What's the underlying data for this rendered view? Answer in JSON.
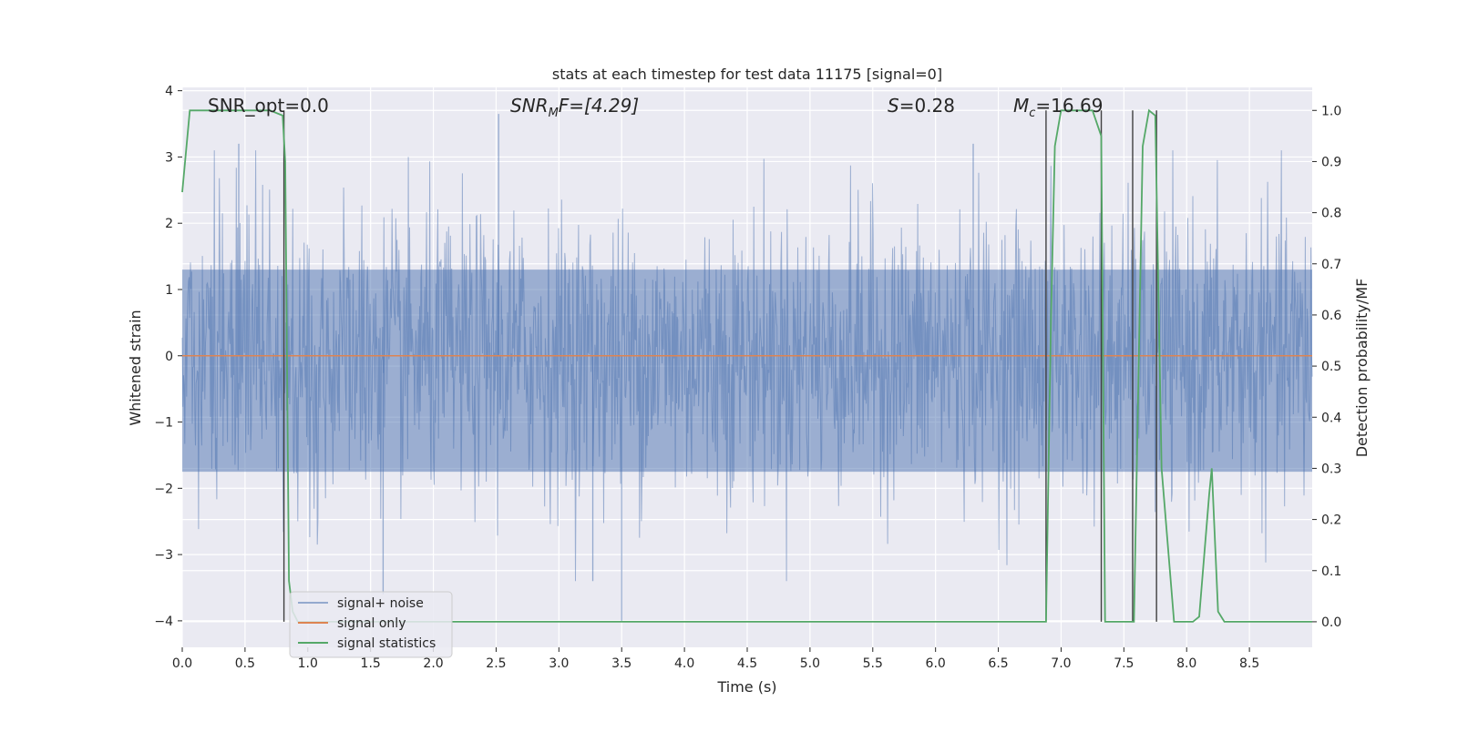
{
  "chart_data": {
    "type": "line",
    "title": "stats at each timestep for test data 11175 [signal=0]",
    "xlabel": "Time (s)",
    "ylabel_left": "Whitened strain",
    "ylabel_right": "Detection probability/MF",
    "xlim": [
      0.0,
      9.0
    ],
    "ylim_left": [
      -4.4,
      4.05
    ],
    "ylim_right": [
      -0.05,
      1.045
    ],
    "x_ticks": [
      "0.0",
      "0.5",
      "1.0",
      "1.5",
      "2.0",
      "2.5",
      "3.0",
      "3.5",
      "4.0",
      "4.5",
      "5.0",
      "5.5",
      "6.0",
      "6.5",
      "7.0",
      "7.5",
      "8.0",
      "8.5"
    ],
    "x_tick_values": [
      0.0,
      0.5,
      1.0,
      1.5,
      2.0,
      2.5,
      3.0,
      3.5,
      4.0,
      4.5,
      5.0,
      5.5,
      6.0,
      6.5,
      7.0,
      7.5,
      8.0,
      8.5
    ],
    "y_left_ticks": [
      "−4",
      "−3",
      "−2",
      "−1",
      "0",
      "1",
      "2",
      "3",
      "4"
    ],
    "y_left_tick_values": [
      -4,
      -3,
      -2,
      -1,
      0,
      1,
      2,
      3,
      4
    ],
    "y_right_ticks": [
      "0.0",
      "0.1",
      "0.2",
      "0.3",
      "0.4",
      "0.5",
      "0.6",
      "0.7",
      "0.8",
      "0.9",
      "1.0"
    ],
    "y_right_tick_values": [
      0.0,
      0.1,
      0.2,
      0.3,
      0.4,
      0.5,
      0.6,
      0.7,
      0.8,
      0.9,
      1.0
    ],
    "grid": true,
    "legend_placement": "lower-left",
    "annotations": {
      "snr_opt": "SNR_opt=0.0",
      "snr_mf_main": "SNR",
      "snr_mf_sub": "M",
      "snr_mf_rest": "F=[4.29]",
      "s_italic": "S",
      "s_rest": "=0.28",
      "mc_main": "M",
      "mc_sub": "c",
      "mc_rest": "=16.69"
    },
    "series": [
      {
        "name": "signal+ noise",
        "color": "#4c72b0",
        "description_only": "dense noise band",
        "envelope_upper_typical": 2.2,
        "envelope_lower_typical": -2.4,
        "core_upper": 1.3,
        "core_lower": -1.75,
        "notable_peaks": [
          [
            0.45,
            3.2
          ],
          [
            2.52,
            3.65
          ],
          [
            3.5,
            -4.0
          ],
          [
            1.6,
            -3.6
          ],
          [
            6.3,
            3.2
          ],
          [
            3.27,
            -3.4
          ]
        ]
      },
      {
        "name": "signal only",
        "color": "#dd8452",
        "x": [
          0.0,
          9.0
        ],
        "y": [
          0.0,
          0.0
        ]
      },
      {
        "name": "signal statistics",
        "color": "#55a868",
        "x": [
          0.0,
          0.06,
          0.1,
          0.4,
          0.7,
          0.8,
          0.82,
          0.85,
          0.88,
          0.92,
          6.88,
          6.92,
          6.95,
          7.0,
          7.05,
          7.25,
          7.32,
          7.35,
          7.45,
          7.55,
          7.58,
          7.65,
          7.7,
          7.75,
          7.8,
          7.9,
          8.05,
          8.1,
          8.18,
          8.2,
          8.25,
          8.3,
          9.0
        ],
        "y": [
          0.84,
          1.0,
          1.0,
          1.0,
          1.0,
          0.99,
          0.9,
          0.08,
          0.02,
          0.0,
          0.0,
          0.6,
          0.93,
          1.0,
          1.0,
          1.0,
          0.95,
          0.0,
          0.0,
          0.0,
          0.0,
          0.93,
          1.0,
          0.99,
          0.3,
          0.0,
          0.0,
          0.01,
          0.25,
          0.3,
          0.02,
          0.0,
          0.0
        ]
      }
    ],
    "vertical_markers": [
      0.81,
      6.88,
      7.32,
      7.57,
      7.76
    ]
  }
}
